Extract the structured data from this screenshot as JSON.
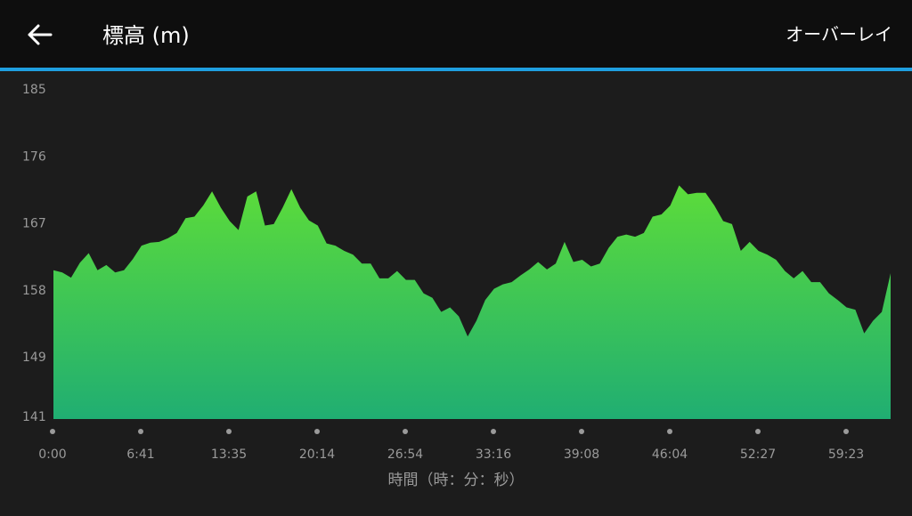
{
  "header": {
    "title": "標高 (m)",
    "action": "オーバーレイ"
  },
  "chart_data": {
    "type": "area",
    "values": [
      161,
      160.7,
      160,
      162,
      163.3,
      161,
      161.7,
      160.7,
      161,
      162.5,
      164.3,
      164.7,
      164.8,
      165.3,
      166,
      168,
      168.2,
      169.7,
      171.6,
      169.4,
      167.6,
      166.4,
      170.9,
      171.6,
      167,
      167.2,
      169.4,
      171.9,
      169.4,
      167.7,
      167,
      164.6,
      164.3,
      163.6,
      163.1,
      161.9,
      161.9,
      159.9,
      159.9,
      160.9,
      159.7,
      159.7,
      157.9,
      157.3,
      155.4,
      156,
      154.8,
      152.1,
      154.2,
      157,
      158.5,
      159.1,
      159.4,
      160.3,
      161.1,
      162.1,
      161.1,
      161.9,
      164.8,
      162.1,
      162.4,
      161.5,
      161.9,
      164,
      165.5,
      165.8,
      165.5,
      166,
      168.2,
      168.5,
      169.7,
      172.4,
      171.2,
      171.4,
      171.4,
      169.7,
      167.6,
      167.2,
      163.6,
      164.8,
      163.6,
      163.1,
      162.4,
      160.9,
      159.9,
      160.9,
      159.4,
      159.4,
      157.9,
      157,
      156,
      155.7,
      152.5,
      154.2,
      155.4,
      160.6
    ],
    "color_top": "#5cdc3a",
    "color_bottom": "#20ae72",
    "ylim": [
      141,
      185
    ],
    "yticks": [
      141,
      149,
      158,
      167,
      176,
      185
    ],
    "xtick_labels": [
      "0:00",
      "6:41",
      "13:35",
      "20:14",
      "26:54",
      "33:16",
      "39:08",
      "46:04",
      "52:27",
      "59:23"
    ],
    "xlabel": "時間（時：分：秒）"
  }
}
